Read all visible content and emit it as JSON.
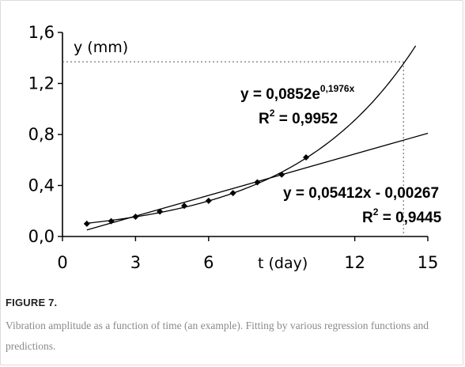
{
  "figure": {
    "label": "FIGURE 7.",
    "caption": "Vibration amplitude as a function of time (an example). Fitting by various regression functions and predictions."
  },
  "chart_data": {
    "type": "scatter",
    "xlabel": "t (day)",
    "ylabel": "y (mm)",
    "xlim": [
      0,
      15
    ],
    "ylim": [
      0,
      1.6
    ],
    "x_ticks": [
      "0",
      "3",
      "6",
      "12",
      "15"
    ],
    "x_tick_values": [
      0,
      3,
      6,
      12,
      15
    ],
    "y_ticks": [
      "0,0",
      "0,4",
      "0,8",
      "1,2",
      "1,6"
    ],
    "y_tick_values": [
      0,
      0.4,
      0.8,
      1.2,
      1.6
    ],
    "grid": false,
    "series": [
      {
        "marker": "diamond",
        "x": [
          1,
          2,
          3,
          4,
          5,
          6,
          7,
          8,
          9,
          10
        ],
        "y": [
          0.1,
          0.12,
          0.155,
          0.195,
          0.24,
          0.28,
          0.34,
          0.425,
          0.485,
          0.62
        ]
      }
    ],
    "fits": [
      {
        "type": "exponential",
        "a": 0.0852,
        "b": 0.1976,
        "equation_main": "y = 0,0852e",
        "equation_exp": "0,1976x",
        "r2_label": "R",
        "r2_exp": "2",
        "r2_value": " = 0,9952",
        "x_range": [
          1,
          14.5
        ]
      },
      {
        "type": "linear",
        "slope": 0.05412,
        "intercept": -0.00267,
        "equation": "y = 0,05412x - 0,00267",
        "r2_label": "R",
        "r2_exp": "2",
        "r2_value": " = 0,9445",
        "x_range": [
          1,
          15
        ]
      }
    ],
    "prediction": {
      "x": 14,
      "y": 1.37
    }
  }
}
